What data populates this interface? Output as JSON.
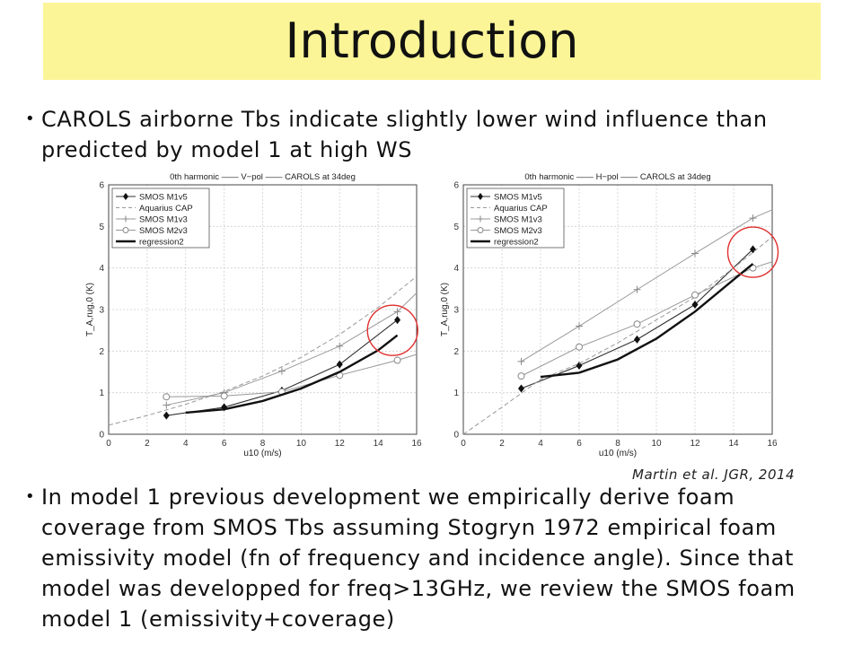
{
  "header": {
    "title": "Introduction"
  },
  "bullets": [
    "CAROLS airborne Tbs indicate slightly lower wind influence than predicted by model 1 at high WS",
    "In model 1 previous development we empirically derive foam coverage from SMOS Tbs assuming Stogryn 1972 empirical foam emissivity model (fn of frequency and incidence angle). Since that model was developped for freq>13GHz, we review the SMOS foam model 1 (emissivity+coverage)"
  ],
  "citation": "Martin et al. JGR, 2014",
  "colors": {
    "title_bg": "#fbf597",
    "highlight_circle": "#e03030"
  },
  "chart_data": [
    {
      "type": "line",
      "title": "0th harmonic —— V−pol —— CAROLS at 34deg",
      "xlabel": "u10 (m/s)",
      "ylabel": "T_A,rug,0 (K)",
      "xlim": [
        0,
        16
      ],
      "ylim": [
        0,
        6
      ],
      "xticks": [
        "0",
        "2",
        "4",
        "6",
        "8",
        "10",
        "12",
        "14",
        "16"
      ],
      "yticks": [
        "0",
        "1",
        "2",
        "3",
        "4",
        "5",
        "6"
      ],
      "legend_position": "top-left",
      "grid": true,
      "series": [
        {
          "name": "SMOS M1v5",
          "style": "diamond",
          "x": [
            3,
            6,
            9,
            12,
            15
          ],
          "y": [
            0.45,
            0.65,
            1.05,
            1.68,
            2.75
          ]
        },
        {
          "name": "Aquarius CAP",
          "style": "dashed",
          "x": [
            0,
            2,
            4,
            6,
            8,
            10,
            12,
            14,
            16
          ],
          "y": [
            0.22,
            0.45,
            0.72,
            1.03,
            1.4,
            1.85,
            2.4,
            3.05,
            3.8
          ]
        },
        {
          "name": "SMOS M1v3",
          "style": "plus",
          "x": [
            3,
            6,
            9,
            12,
            15,
            16
          ],
          "y": [
            0.7,
            1.0,
            1.52,
            2.12,
            2.95,
            3.4
          ]
        },
        {
          "name": "SMOS M2v3",
          "style": "circle",
          "x": [
            3,
            6,
            9,
            12,
            15,
            16
          ],
          "y": [
            0.9,
            0.92,
            1.02,
            1.42,
            1.78,
            1.92
          ]
        },
        {
          "name": "regression2",
          "style": "thick",
          "x": [
            4,
            6,
            8,
            10,
            12,
            14,
            15
          ],
          "y": [
            0.52,
            0.6,
            0.8,
            1.1,
            1.5,
            2.02,
            2.38
          ]
        }
      ],
      "highlight": {
        "x": 14.75,
        "y": 2.5
      }
    },
    {
      "type": "line",
      "title": "0th harmonic —— H−pol —— CAROLS at 34deg",
      "xlabel": "u10 (m/s)",
      "ylabel": "T_A,rug,0 (K)",
      "xlim": [
        0,
        16
      ],
      "ylim": [
        0,
        6
      ],
      "xticks": [
        "0",
        "2",
        "4",
        "6",
        "8",
        "10",
        "12",
        "14",
        "16"
      ],
      "yticks": [
        "0",
        "1",
        "2",
        "3",
        "4",
        "5",
        "6"
      ],
      "legend_position": "top-left",
      "grid": true,
      "series": [
        {
          "name": "SMOS M1v5",
          "style": "diamond",
          "x": [
            3,
            6,
            9,
            12,
            15
          ],
          "y": [
            1.1,
            1.65,
            2.28,
            3.12,
            4.45
          ]
        },
        {
          "name": "Aquarius CAP",
          "style": "dashed",
          "x": [
            0,
            2,
            4,
            6,
            8,
            10,
            12,
            14,
            16
          ],
          "y": [
            0.0,
            0.65,
            1.32,
            1.7,
            2.2,
            2.75,
            3.3,
            4.0,
            4.75
          ]
        },
        {
          "name": "SMOS M1v3",
          "style": "plus",
          "x": [
            3,
            6,
            9,
            12,
            15,
            16
          ],
          "y": [
            1.75,
            2.6,
            3.48,
            4.35,
            5.2,
            5.4
          ]
        },
        {
          "name": "SMOS M2v3",
          "style": "circle",
          "x": [
            3,
            6,
            9,
            12,
            15,
            16
          ],
          "y": [
            1.4,
            2.1,
            2.65,
            3.35,
            4.0,
            4.15
          ]
        },
        {
          "name": "regression2",
          "style": "thick",
          "x": [
            4,
            6,
            8,
            10,
            12,
            14,
            15
          ],
          "y": [
            1.38,
            1.48,
            1.8,
            2.3,
            2.95,
            3.72,
            4.1
          ]
        }
      ],
      "highlight": {
        "x": 15.0,
        "y": 4.38
      }
    }
  ]
}
